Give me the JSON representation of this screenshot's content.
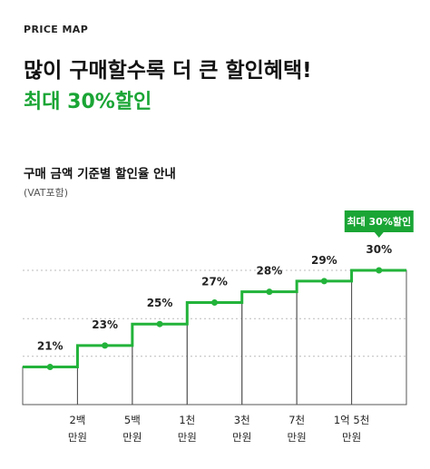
{
  "header": {
    "eyebrow": "PRICE MAP",
    "headline": "많이 구매할수록 더 큰 할인혜택!",
    "subline": "최대 30%할인"
  },
  "chart_section": {
    "title": "구매 금액 기준별 할인율 안내",
    "note": "(VAT포함)"
  },
  "colors": {
    "accent": "#1aa535",
    "step_line": "#22b33a",
    "bar_border": "#555555",
    "grid": "#bbbbbb"
  },
  "chart_data": {
    "type": "line",
    "step": true,
    "categories_x_ticks": [
      [
        "2백",
        "만원"
      ],
      [
        "5백",
        "만원"
      ],
      [
        "1천",
        "만원"
      ],
      [
        "3천",
        "만원"
      ],
      [
        "7천",
        "만원"
      ],
      [
        "1억 5천",
        "만원"
      ]
    ],
    "tiers": [
      "21%",
      "23%",
      "25%",
      "27%",
      "28%",
      "29%",
      "30%"
    ],
    "values": [
      21,
      23,
      25,
      27,
      28,
      29,
      30
    ],
    "highlight_index": 6,
    "callout": "최대 30%할인",
    "grid": true,
    "ylim": [
      17.5,
      30
    ]
  }
}
